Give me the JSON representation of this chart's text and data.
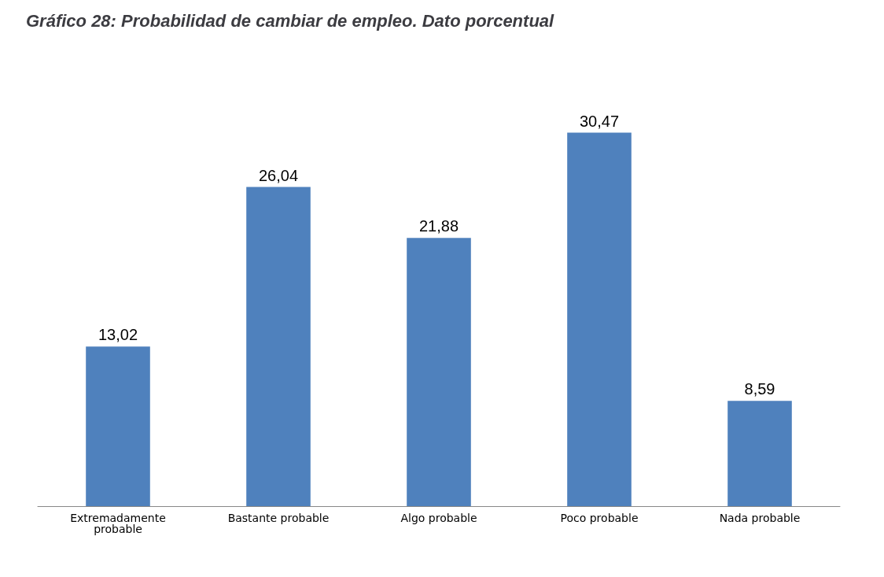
{
  "chart_data": {
    "type": "bar",
    "title": "Gráfico 28: Probabilidad de cambiar de empleo. Dato porcentual",
    "categories": [
      "Extremadamente\nprobable",
      "Bastante probable",
      "Algo probable",
      "Poco probable",
      "Nada probable"
    ],
    "values": [
      13.02,
      26.04,
      21.88,
      30.47,
      8.59
    ],
    "value_labels": [
      "13,02",
      "26,04",
      "21,88",
      "30,47",
      "8,59"
    ],
    "color": "#4f81bd",
    "grid": false
  }
}
